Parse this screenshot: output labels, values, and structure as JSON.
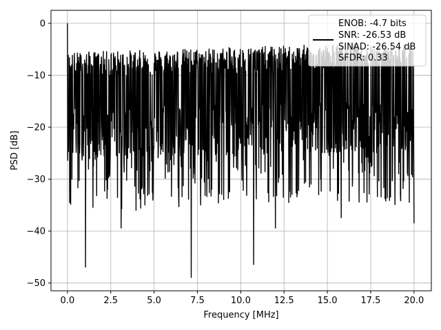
{
  "chart_data": {
    "type": "line",
    "xlabel": "Frequency [MHz]",
    "ylabel": "PSD [dB]",
    "xlim": [
      -0.95,
      21.0
    ],
    "ylim": [
      -51.5,
      2.5
    ],
    "xticks": [
      0.0,
      2.5,
      5.0,
      7.5,
      10.0,
      12.5,
      15.0,
      17.5,
      20.0
    ],
    "xtick_labels": [
      "0.0",
      "2.5",
      "5.0",
      "7.5",
      "10.0",
      "12.5",
      "15.0",
      "17.5",
      "20.0"
    ],
    "yticks": [
      0,
      -10,
      -20,
      -30,
      -40,
      -50
    ],
    "ytick_labels": [
      "0",
      "−10",
      "−20",
      "−30",
      "−40",
      "−50"
    ],
    "grid": true,
    "legend_position": "top-right",
    "series": [
      {
        "name": "ENOB: -4.7 bits\nSNR: -26.53 dB\nSINAD: -26.54 dB\nSFDR: 0.33",
        "color": "#000000",
        "x_range": [
          0.0,
          20.0
        ],
        "y_range": [
          -49.0,
          0.0
        ],
        "features": [
          {
            "x": 0.0,
            "y": 0.0
          },
          {
            "x": 1.05,
            "y": -47.0
          },
          {
            "x": 7.15,
            "y": -49.0
          },
          {
            "x": 10.75,
            "y": -46.5
          },
          {
            "x": 12.0,
            "y": -39.5
          },
          {
            "x": 15.8,
            "y": -37.5
          },
          {
            "x": 18.9,
            "y": -35.0
          },
          {
            "x": 3.1,
            "y": -39.5
          },
          {
            "x": 20.0,
            "y": -38.5
          }
        ]
      }
    ]
  },
  "legend": {
    "lines": [
      "ENOB: -4.7 bits",
      "SNR: -26.53 dB",
      "SINAD: -26.54 dB",
      "SFDR: 0.33"
    ]
  }
}
